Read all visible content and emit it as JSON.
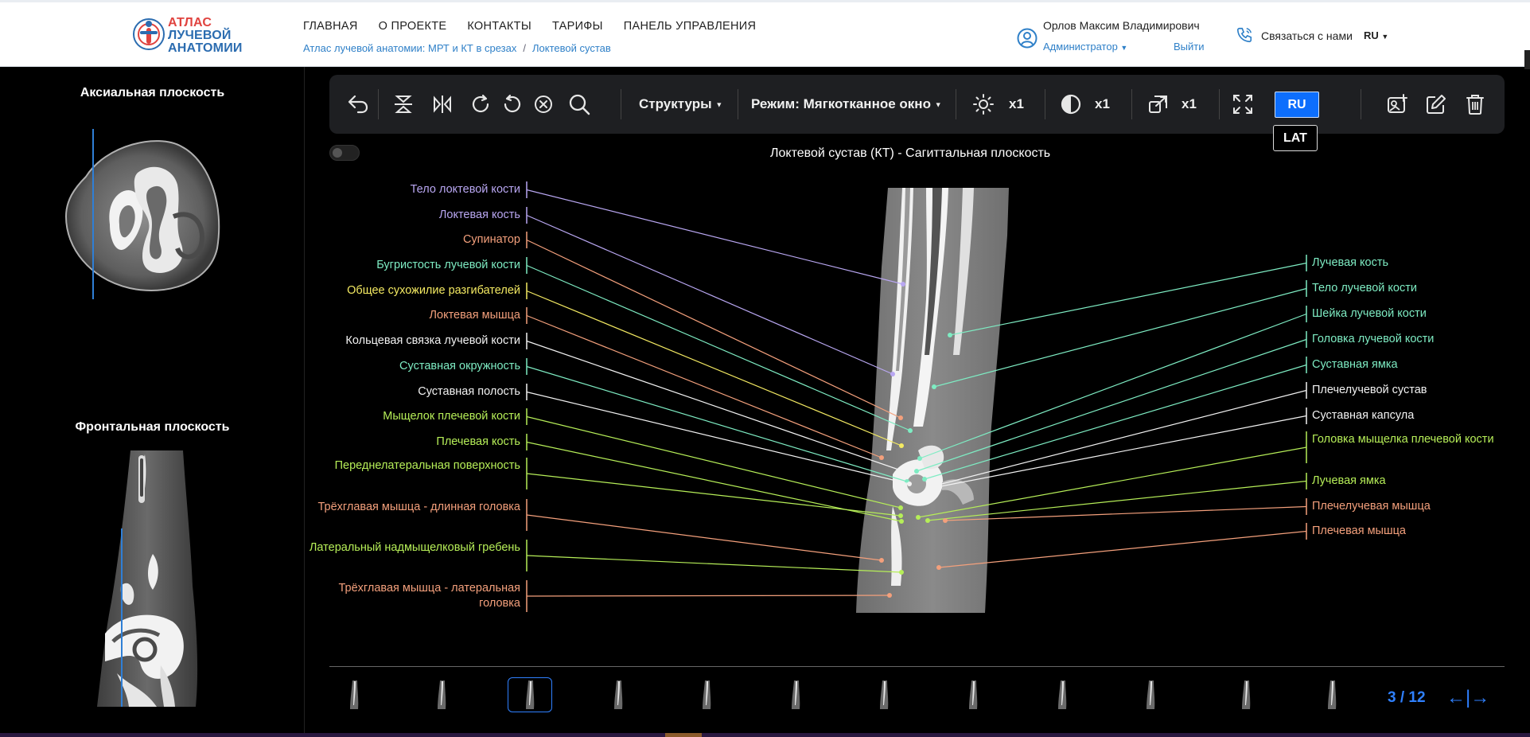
{
  "header": {
    "logo": {
      "line1": "АТЛАС",
      "line2": "ЛУЧЕВОЙ",
      "line3": "АНАТОМИИ"
    },
    "nav": [
      "ГЛАВНАЯ",
      "О ПРОЕКТЕ",
      "КОНТАКТЫ",
      "ТАРИФЫ",
      "ПАНЕЛЬ УПРАВЛЕНИЯ"
    ],
    "breadcrumb": [
      "Атлас лучевой анатомии: МРТ и КТ в срезах",
      "Локтевой сустав"
    ],
    "user_name": "Орлов Максим Владимирович",
    "user_role": "Администратор",
    "logout": "Выйти",
    "contact": "Связаться с нами",
    "lang": "RU"
  },
  "left_panel": {
    "axial_title": "Аксиальная плоскость",
    "frontal_title": "Фронтальная плоскость"
  },
  "toolbar": {
    "structures": "Структуры",
    "mode": "Режим: Мягкотканное окно",
    "brightness": "x1",
    "contrast": "x1",
    "zoom": "x1",
    "ru": "RU",
    "lat": "LAT",
    "icons": [
      "undo-icon",
      "flip-vertical-icon",
      "flip-horizontal-icon",
      "rotate-right-icon",
      "rotate-left-icon",
      "reset-icon",
      "search-icon",
      "brightness-icon",
      "contrast-icon",
      "zoom-icon",
      "fullscreen-icon",
      "screenshot-icon",
      "edit-icon",
      "trash-icon"
    ]
  },
  "view": {
    "title": "Локтевой сустав (КТ) - Сагиттальная плоскость"
  },
  "labels_left": [
    {
      "text": "Тело локтевой кости",
      "color": "#b9a7f2"
    },
    {
      "text": "Локтевая кость",
      "color": "#b9a7f2"
    },
    {
      "text": "Супинатор",
      "color": "#f4a07c"
    },
    {
      "text": "Бугристость лучевой кости",
      "color": "#7eecc3"
    },
    {
      "text": "Общее сухожилие разгибателей",
      "color": "#f4ea62"
    },
    {
      "text": "Локтевая мышца",
      "color": "#f4a07c"
    },
    {
      "text": "Кольцевая связка лучевой кости",
      "color": "#f2f2f2"
    },
    {
      "text": "Суставная окружность",
      "color": "#7eecc3"
    },
    {
      "text": "Суставная полость",
      "color": "#f2f2f2"
    },
    {
      "text": "Мыщелок плечевой кости",
      "color": "#b6ee58"
    },
    {
      "text": "Плечевая кость",
      "color": "#b6ee58"
    },
    {
      "text": "Переднелатеральная поверхность",
      "color": "#b6ee58"
    },
    {
      "text": "Трёхглавая мышца - длинная головка",
      "color": "#f4a07c"
    },
    {
      "text": "Латеральный надмыщелковый гребень",
      "color": "#b6ee58"
    },
    {
      "text": "Трёхглавая мышца - латеральная головка",
      "color": "#f4a07c"
    }
  ],
  "labels_right": [
    {
      "text": "Лучевая кость",
      "color": "#7eecc3"
    },
    {
      "text": "Тело лучевой кости",
      "color": "#7eecc3"
    },
    {
      "text": "Шейка лучевой кости",
      "color": "#7eecc3"
    },
    {
      "text": "Головка лучевой кости",
      "color": "#7eecc3"
    },
    {
      "text": "Суставная ямка",
      "color": "#7eecc3"
    },
    {
      "text": "Плечелучевой сустав",
      "color": "#f2f2f2"
    },
    {
      "text": "Суставная капсула",
      "color": "#f2f2f2"
    },
    {
      "text": "Головка мыщелка плечевой кости",
      "color": "#b6ee58"
    },
    {
      "text": "Лучевая ямка",
      "color": "#b6ee58"
    },
    {
      "text": "Плечелучевая мышца",
      "color": "#f4a07c"
    },
    {
      "text": "Плечевая мышца",
      "color": "#f4a07c"
    }
  ],
  "pager": {
    "text": "3 / 12",
    "arrows": "←|→"
  },
  "colors": {
    "accent": "#2f80ff",
    "background": "#000000",
    "toolbar": "#1e1f22"
  }
}
